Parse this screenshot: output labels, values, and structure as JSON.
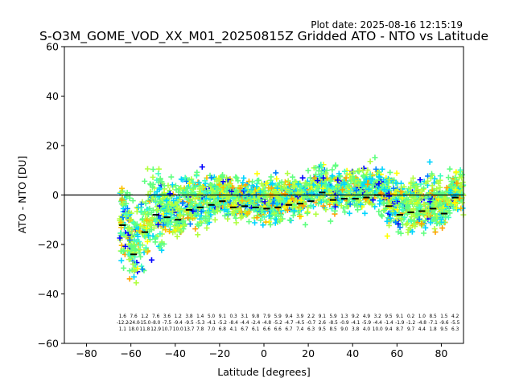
{
  "plot_date": "Plot date: 2025-08-16 12:15:19",
  "chart_data": {
    "type": "scatter",
    "title": "S-O3M_GOME_VOD_XX_M01_20250815Z Gridded ATO - NTO vs Latitude",
    "xlabel": "Latitude [degrees]",
    "ylabel": "ATO - NTO [DU]",
    "xlim": [
      -90,
      90
    ],
    "ylim": [
      -60,
      60
    ],
    "xticks": [
      -80,
      -60,
      -40,
      -20,
      0,
      20,
      40,
      60,
      80
    ],
    "yticks": [
      -60,
      -40,
      -20,
      0,
      20,
      40,
      60
    ],
    "grid": false,
    "legend": "none",
    "zero_line": 0,
    "colors": {
      "scatter_palette": [
        "#0000ff",
        "#0080ff",
        "#00d4ff",
        "#40ffc0",
        "#60ff80",
        "#b0ff40",
        "#ffff00",
        "#ffc000",
        "#ffa000"
      ],
      "mean_bars": "#000000",
      "zero_line": "#000000"
    },
    "bin_means": {
      "x": [
        -63.75,
        -58.75,
        -53.75,
        -48.75,
        -43.75,
        -38.75,
        -33.75,
        -28.75,
        -23.75,
        -18.75,
        -13.75,
        -8.75,
        -3.75,
        1.25,
        6.25,
        11.25,
        16.25,
        21.25,
        26.25,
        31.25,
        36.25,
        41.25,
        46.25,
        51.25,
        56.25,
        61.25,
        66.25,
        71.25,
        76.25,
        81.25,
        86.25
      ],
      "y": [
        -12.2,
        -24.0,
        -15.0,
        -8.0,
        -9.0,
        -10.0,
        -6.0,
        -5.0,
        -4.0,
        -2.5,
        -5.0,
        -4.5,
        -5.0,
        -5.5,
        -5.0,
        -4.0,
        -3.5,
        -2.5,
        1.0,
        -2.0,
        -1.5,
        -1.5,
        -1.0,
        0.0,
        -4.5,
        -8.0,
        -7.0,
        -6.5,
        -5.5,
        -7.5,
        -1.0
      ]
    },
    "bin_stats_row1": [
      "1.6",
      "7.6",
      "1.2",
      "7.6",
      "3.6",
      "1.2",
      "3.8",
      "1.4",
      "5.0",
      "9.1",
      "0.3",
      "3.1",
      "9.8",
      "7.9",
      "5.9",
      "9.4",
      "3.9",
      "2.2",
      "9.1",
      "5.9",
      "1.3",
      "9.2",
      "4.9",
      "3.2",
      "9.5",
      "9.1",
      "0.2",
      "1.0",
      "8.5",
      "1.5",
      "4.2"
    ],
    "bin_stats_row2": [
      "-12.2",
      "-24.0",
      "-15.0",
      "-8.0",
      "-7.5",
      "-9.4",
      "-9.5",
      "-5.3",
      "-4.1",
      "-5.2",
      "-8.4",
      "-4.4",
      "-2.4",
      "-4.8",
      "-5.2",
      "-4.7",
      "-4.5",
      "-0.7",
      "2.6",
      "-8.5",
      "-0.9",
      "-4.1",
      "-5.9",
      "-4.4",
      "-1.4",
      "-1.9",
      "-1.2",
      "-4.8",
      "-7.1",
      "-9.6",
      "-5.5"
    ],
    "bin_stats_row3": [
      "1.1",
      "18.0",
      "11.8",
      "12.9",
      "10.7",
      "10.0",
      "13.7",
      "7.8",
      "7.0",
      "6.8",
      "4.1",
      "6.7",
      "6.1",
      "6.6",
      "6.6",
      "6.7",
      "7.4",
      "6.3",
      "9.5",
      "8.5",
      "9.0",
      "3.8",
      "4.0",
      "10.0",
      "9.4",
      "8.7",
      "9.7",
      "4.4",
      "1.8",
      "9.5",
      "6.3"
    ]
  }
}
